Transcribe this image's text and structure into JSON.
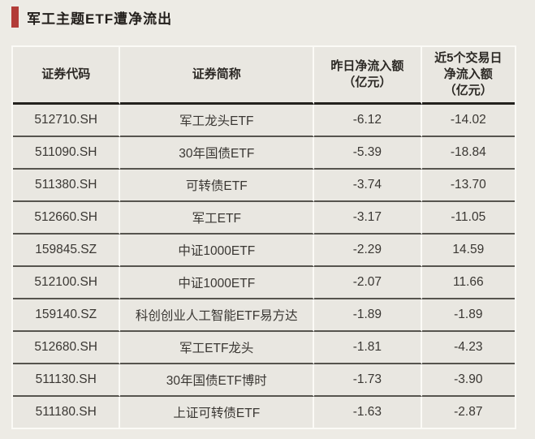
{
  "title": {
    "text": "军工主题ETF遭净流出",
    "accent_color": "#b23c38"
  },
  "colors": {
    "page_background": "#edebe5",
    "table_background": "#e9e7e1",
    "grid_light": "#fbfaf6",
    "row_divider": "#56544e",
    "header_underline": "#23211d",
    "text": "#3a3733"
  },
  "table": {
    "columns": [
      {
        "label": "证券代码"
      },
      {
        "label": "证券简称"
      },
      {
        "label": "昨日净流入额\n（亿元）"
      },
      {
        "label": "近5个交易日\n净流入额\n（亿元）"
      }
    ],
    "rows": [
      [
        "512710.SH",
        "军工龙头ETF",
        "-6.12",
        "-14.02"
      ],
      [
        "511090.SH",
        "30年国债ETF",
        "-5.39",
        "-18.84"
      ],
      [
        "511380.SH",
        "可转债ETF",
        "-3.74",
        "-13.70"
      ],
      [
        "512660.SH",
        "军工ETF",
        "-3.17",
        "-11.05"
      ],
      [
        "159845.SZ",
        "中证1000ETF",
        "-2.29",
        "14.59"
      ],
      [
        "512100.SH",
        "中证1000ETF",
        "-2.07",
        "11.66"
      ],
      [
        "159140.SZ",
        "科创创业人工智能ETF易方达",
        "-1.89",
        "-1.89"
      ],
      [
        "512680.SH",
        "军工ETF龙头",
        "-1.81",
        "-4.23"
      ],
      [
        "511130.SH",
        "30年国债ETF博时",
        "-1.73",
        "-3.90"
      ],
      [
        "511180.SH",
        "上证可转债ETF",
        "-1.63",
        "-2.87"
      ]
    ]
  },
  "chart_data": {
    "type": "table",
    "title": "军工主题ETF遭净流出",
    "columns": [
      "证券代码",
      "证券简称",
      "昨日净流入额（亿元）",
      "近5个交易日净流入额（亿元）"
    ],
    "rows": [
      [
        "512710.SH",
        "军工龙头ETF",
        -6.12,
        -14.02
      ],
      [
        "511090.SH",
        "30年国债ETF",
        -5.39,
        -18.84
      ],
      [
        "511380.SH",
        "可转债ETF",
        -3.74,
        -13.7
      ],
      [
        "512660.SH",
        "军工ETF",
        -3.17,
        -11.05
      ],
      [
        "159845.SZ",
        "中证1000ETF",
        -2.29,
        14.59
      ],
      [
        "512100.SH",
        "中证1000ETF",
        -2.07,
        11.66
      ],
      [
        "159140.SZ",
        "科创创业人工智能ETF易方达",
        -1.89,
        -1.89
      ],
      [
        "512680.SH",
        "军工ETF龙头",
        -1.81,
        -4.23
      ],
      [
        "511130.SH",
        "30年国债ETF博时",
        -1.73,
        -3.9
      ],
      [
        "511180.SH",
        "上证可转债ETF",
        -1.63,
        -2.87
      ]
    ]
  }
}
